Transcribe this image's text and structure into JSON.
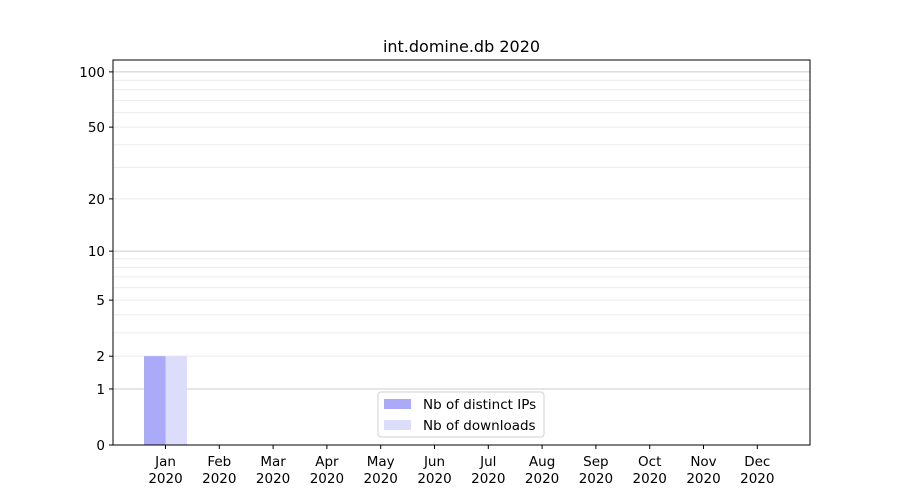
{
  "chart_data": {
    "type": "bar",
    "title": "int.domine.db 2020",
    "xlabel": "",
    "ylabel": "",
    "yscale": "log(1+y)",
    "ylim": [
      0,
      116
    ],
    "grid": true,
    "legend_placement": "lower-center",
    "categories": [
      "Jan\n2020",
      "Feb\n2020",
      "Mar\n2020",
      "Apr\n2020",
      "May\n2020",
      "Jun\n2020",
      "Jul\n2020",
      "Aug\n2020",
      "Sep\n2020",
      "Oct\n2020",
      "Nov\n2020",
      "Dec\n2020"
    ],
    "ytick_labels": [
      "0",
      "1",
      "2",
      "5",
      "10",
      "20",
      "50",
      "100"
    ],
    "series": [
      {
        "name": "Nb of distinct IPs",
        "color": "#aaaaf8",
        "values": [
          2,
          0,
          0,
          0,
          0,
          0,
          0,
          0,
          0,
          0,
          0,
          0
        ]
      },
      {
        "name": "Nb of downloads",
        "color": "#dcdcfb",
        "values": [
          2,
          0,
          0,
          0,
          0,
          0,
          0,
          0,
          0,
          0,
          0,
          0
        ]
      }
    ]
  }
}
